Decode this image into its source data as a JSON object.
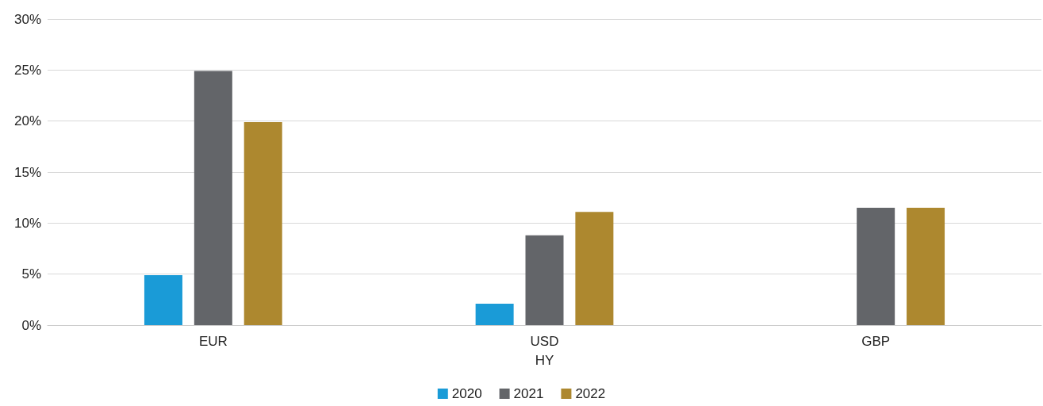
{
  "chart_data": {
    "type": "bar",
    "xlabel": "HY",
    "categories": [
      "EUR",
      "USD",
      "GBP"
    ],
    "series": [
      {
        "name": "2020",
        "color": "#1a9bd7",
        "values": [
          4.9,
          2.1,
          null
        ]
      },
      {
        "name": "2021",
        "color": "#636569",
        "values": [
          24.9,
          8.8,
          11.5
        ]
      },
      {
        "name": "2022",
        "color": "#ad882f",
        "values": [
          19.9,
          11.1,
          11.5
        ]
      }
    ],
    "ylim": [
      0,
      30
    ],
    "yticks": [
      {
        "value": 0,
        "label": "0%"
      },
      {
        "value": 5,
        "label": "5%"
      },
      {
        "value": 10,
        "label": "10%"
      },
      {
        "value": 15,
        "label": "15%"
      },
      {
        "value": 20,
        "label": "20%"
      },
      {
        "value": 25,
        "label": "25%"
      },
      {
        "value": 30,
        "label": "30%"
      }
    ],
    "grid": "y",
    "legend": "bottom"
  }
}
